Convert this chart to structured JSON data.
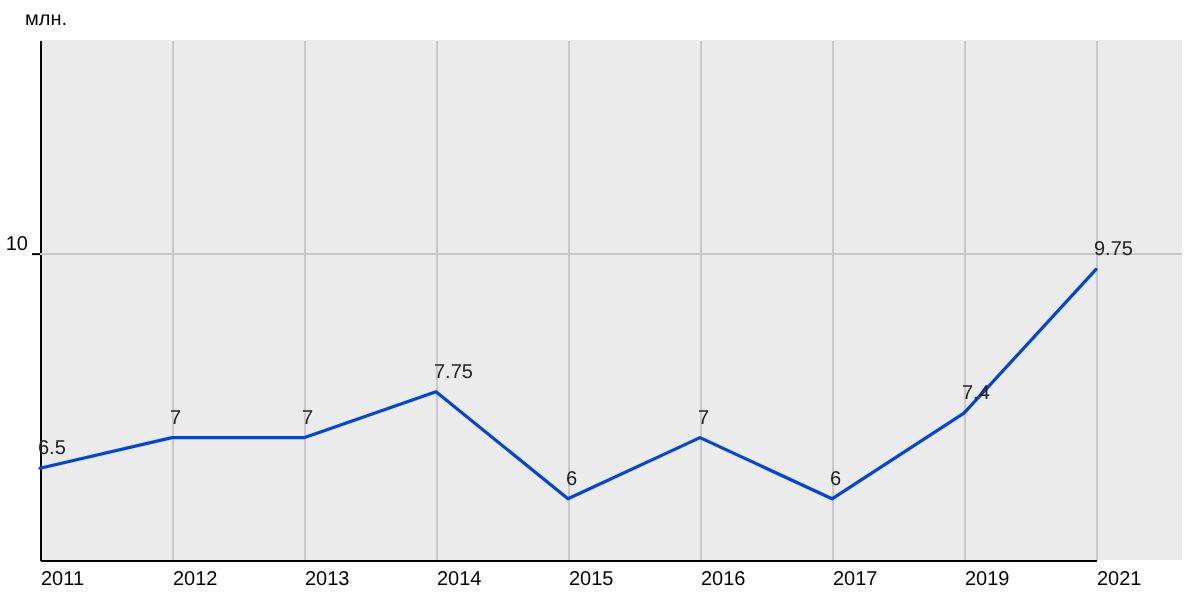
{
  "chart_data": {
    "type": "line",
    "ylabel": "млн.",
    "categories": [
      "2011",
      "2012",
      "2013",
      "2014",
      "2015",
      "2016",
      "2017",
      "2019",
      "2021"
    ],
    "series": [
      {
        "color": "#0044dd",
        "values": [
          6.5,
          7,
          7,
          7.75,
          6,
          7,
          6,
          7.4,
          9.75
        ]
      }
    ],
    "ylim": [
      5,
      13.5
    ],
    "ref_lines": [
      {
        "axis": "y",
        "value": 10,
        "label": "10",
        "color": "#c8c8c8"
      }
    ],
    "grid": "x",
    "data_labels": true,
    "marker": "none",
    "line_style": "solid"
  }
}
